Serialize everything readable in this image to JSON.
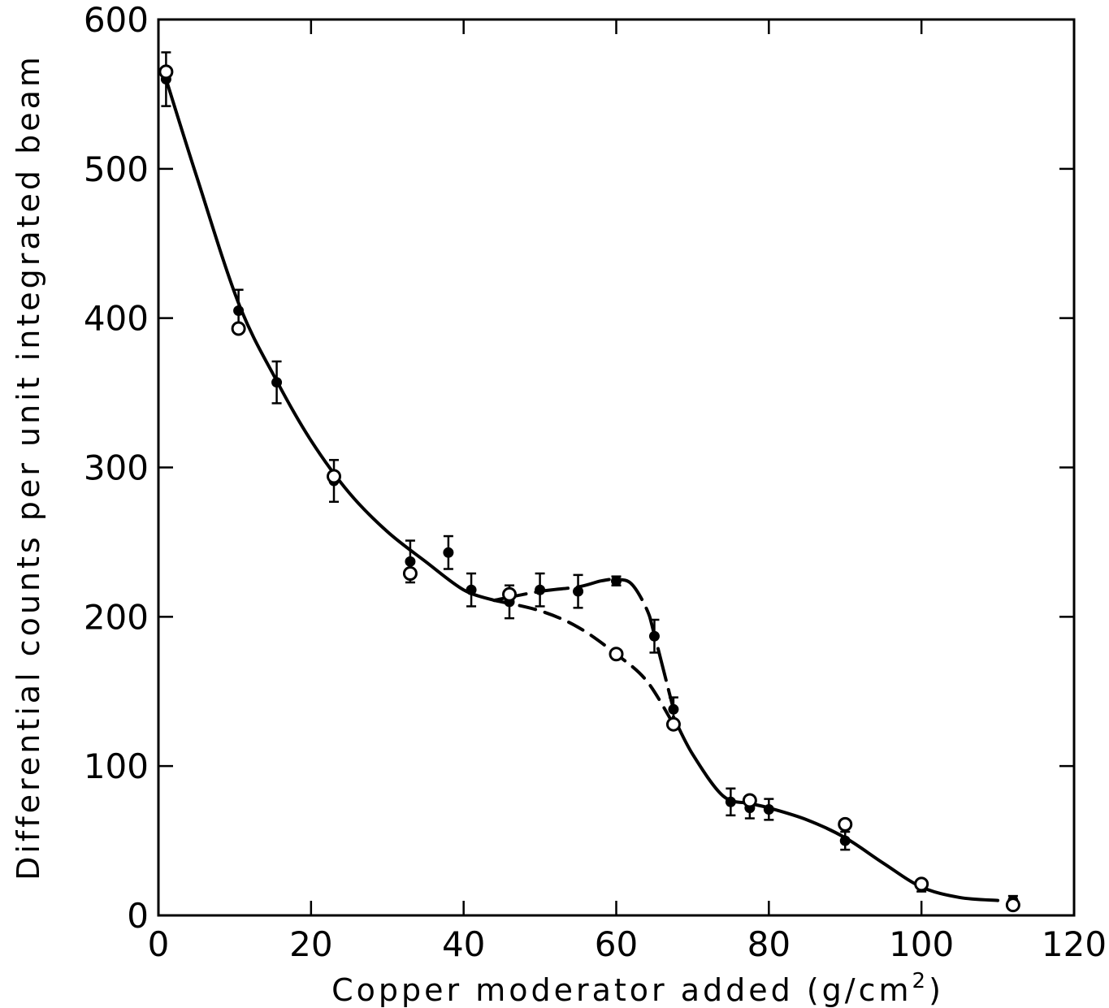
{
  "chart_data": {
    "type": "scatter",
    "xlabel": "Copper moderator added (g/cm",
    "xlabel_sup": "2",
    "xlabel_end": ")",
    "ylabel": "Differential counts per unit integrated beam",
    "xlim": [
      0,
      120
    ],
    "ylim": [
      0,
      600
    ],
    "x_ticks": [
      0,
      20,
      40,
      60,
      80,
      100,
      120
    ],
    "y_ticks": [
      0,
      100,
      200,
      300,
      400,
      500,
      600
    ],
    "series": [
      {
        "marker": "filled-circle",
        "points": [
          {
            "x": 1,
            "y": 560,
            "err": 18
          },
          {
            "x": 10.5,
            "y": 405,
            "err": 14
          },
          {
            "x": 15.5,
            "y": 357,
            "err": 14
          },
          {
            "x": 23,
            "y": 291,
            "err": 14
          },
          {
            "x": 33,
            "y": 237,
            "err": 14
          },
          {
            "x": 38,
            "y": 243,
            "err": 11
          },
          {
            "x": 41,
            "y": 218,
            "err": 11
          },
          {
            "x": 46,
            "y": 210,
            "err": 11
          },
          {
            "x": 50,
            "y": 218,
            "err": 11
          },
          {
            "x": 55,
            "y": 217,
            "err": 11
          },
          {
            "x": 60,
            "y": 224,
            "err": 3
          },
          {
            "x": 65,
            "y": 187,
            "err": 11
          },
          {
            "x": 67.5,
            "y": 138,
            "err": 8
          },
          {
            "x": 75,
            "y": 76,
            "err": 9
          },
          {
            "x": 77.5,
            "y": 72,
            "err": 7
          },
          {
            "x": 80,
            "y": 71,
            "err": 7
          },
          {
            "x": 90,
            "y": 50,
            "err": 6
          },
          {
            "x": 100,
            "y": 19,
            "err": 3
          },
          {
            "x": 112,
            "y": 10,
            "err": 3
          }
        ]
      },
      {
        "marker": "open-circle",
        "points": [
          {
            "x": 1,
            "y": 565
          },
          {
            "x": 10.5,
            "y": 393
          },
          {
            "x": 23,
            "y": 294
          },
          {
            "x": 33,
            "y": 229
          },
          {
            "x": 46,
            "y": 215
          },
          {
            "x": 60,
            "y": 175
          },
          {
            "x": 67.5,
            "y": 128
          },
          {
            "x": 77.5,
            "y": 77
          },
          {
            "x": 90,
            "y": 61
          },
          {
            "x": 100,
            "y": 21
          },
          {
            "x": 112,
            "y": 7
          }
        ]
      }
    ],
    "curves": [
      {
        "style": "solid",
        "points": [
          [
            1,
            560
          ],
          [
            5,
            495
          ],
          [
            10.5,
            410
          ],
          [
            15.5,
            358
          ],
          [
            20,
            318
          ],
          [
            25,
            283
          ],
          [
            30,
            257
          ],
          [
            35,
            237
          ],
          [
            40,
            218
          ],
          [
            44,
            211
          ]
        ]
      },
      {
        "style": "long-dash",
        "points": [
          [
            44,
            211
          ],
          [
            50,
            217
          ],
          [
            55,
            220
          ],
          [
            58,
            224
          ],
          [
            60,
            225
          ],
          [
            62,
            222
          ],
          [
            64,
            205
          ],
          [
            65,
            188
          ],
          [
            67.5,
            138
          ]
        ]
      },
      {
        "style": "dash",
        "points": [
          [
            44,
            211
          ],
          [
            50,
            204
          ],
          [
            55,
            193
          ],
          [
            60,
            175
          ],
          [
            64,
            157
          ],
          [
            67.5,
            128
          ]
        ]
      },
      {
        "style": "solid",
        "points": [
          [
            67.5,
            133
          ],
          [
            70,
            108
          ],
          [
            74,
            80
          ],
          [
            77.5,
            75
          ],
          [
            80,
            72
          ],
          [
            85,
            64
          ],
          [
            90,
            52
          ],
          [
            95,
            35
          ],
          [
            100,
            19
          ],
          [
            105,
            12
          ],
          [
            110,
            10
          ]
        ]
      }
    ]
  }
}
